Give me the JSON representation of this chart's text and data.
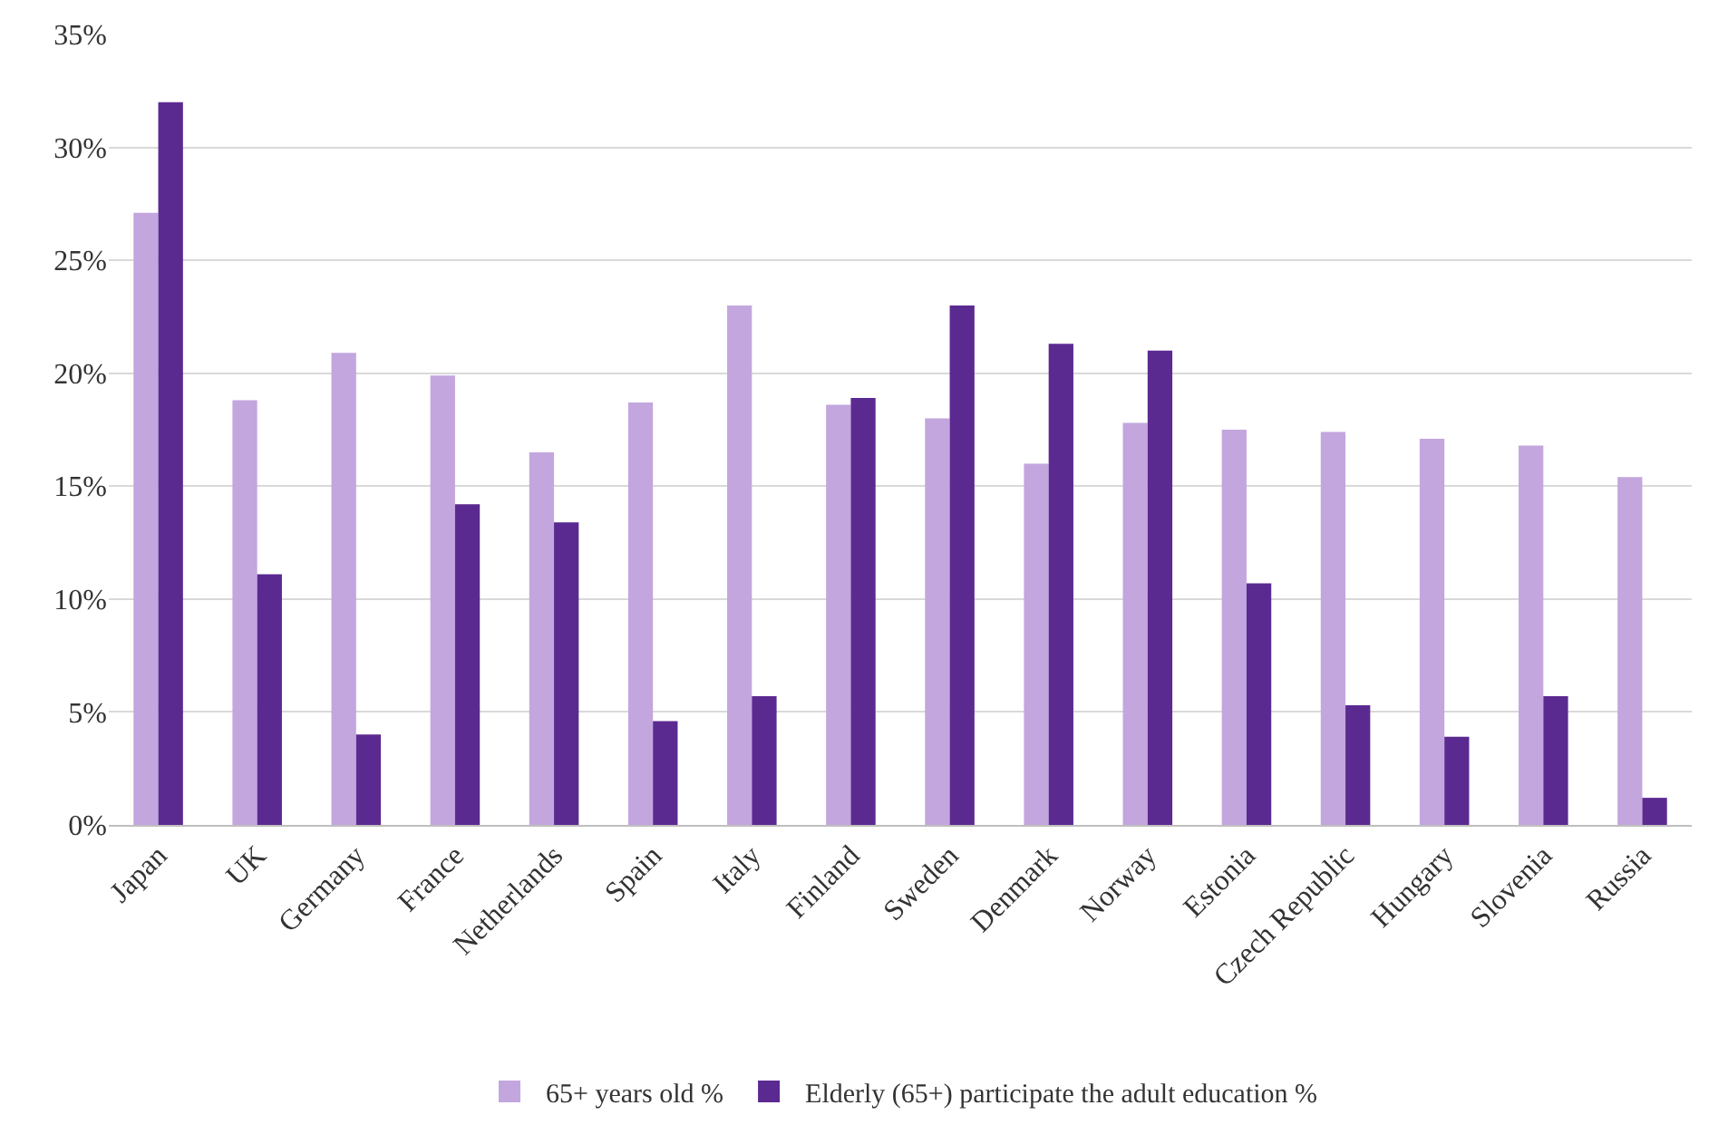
{
  "chart_data": {
    "type": "bar",
    "categories": [
      "Japan",
      "UK",
      "Germany",
      "France",
      "Netherlands",
      "Spain",
      "Italy",
      "Finland",
      "Sweden",
      "Denmark",
      "Norway",
      "Estonia",
      "Czech Republic",
      "Hungary",
      "Slovenia",
      "Russia"
    ],
    "series": [
      {
        "name": "65+ years old %",
        "color": "#c3a6de",
        "values": [
          27.1,
          18.8,
          20.9,
          19.9,
          16.5,
          18.7,
          23.0,
          18.6,
          18.0,
          16.0,
          17.8,
          17.5,
          17.4,
          17.1,
          16.8,
          15.4
        ]
      },
      {
        "name": "Elderly (65+) participate the adult education %",
        "color": "#5b2a91",
        "values": [
          32.0,
          11.1,
          4.0,
          14.2,
          13.4,
          4.6,
          5.7,
          18.9,
          23.0,
          21.3,
          21.0,
          10.7,
          5.3,
          3.9,
          5.7,
          1.2
        ]
      }
    ],
    "ylim": [
      0,
      35
    ],
    "yticks": [
      {
        "value": 0,
        "label": "0%"
      },
      {
        "value": 5,
        "label": "5%"
      },
      {
        "value": 10,
        "label": "10%"
      },
      {
        "value": 15,
        "label": "15%"
      },
      {
        "value": 20,
        "label": "20%"
      },
      {
        "value": 25,
        "label": "25%"
      },
      {
        "value": 30,
        "label": "30%"
      },
      {
        "value": 35,
        "label": "35%"
      }
    ],
    "grid": "y",
    "legend": "bottom"
  }
}
